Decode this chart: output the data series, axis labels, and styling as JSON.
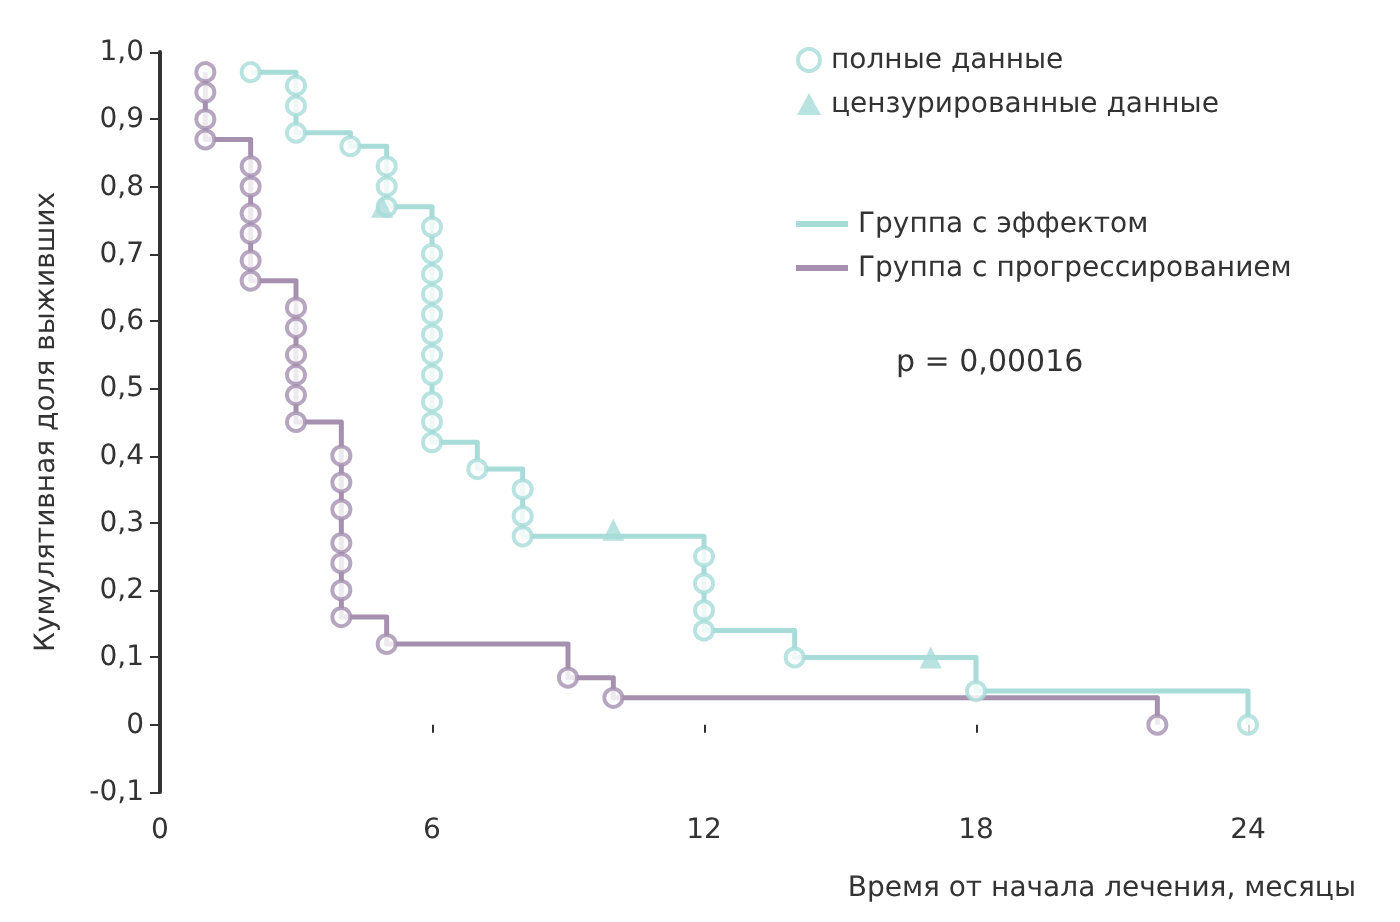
{
  "chart_data": {
    "type": "step",
    "xlabel": "Время от начала лечения, месяцы",
    "ylabel": "Кумулятивная доля выживших",
    "annotations": [
      "p = 0,00016"
    ],
    "xlim": [
      0,
      24
    ],
    "xticks": [
      0,
      6,
      12,
      18,
      24
    ],
    "ylim": [
      -0.1,
      1.0
    ],
    "yticks": [
      {
        "value": -0.1,
        "label": "-0,1"
      },
      {
        "value": 0,
        "label": "0"
      },
      {
        "value": 0.1,
        "label": "0,1"
      },
      {
        "value": 0.2,
        "label": "0,2"
      },
      {
        "value": 0.3,
        "label": "0,3"
      },
      {
        "value": 0.4,
        "label": "0,4"
      },
      {
        "value": 0.5,
        "label": "0,5"
      },
      {
        "value": 0.6,
        "label": "0,6"
      },
      {
        "value": 0.7,
        "label": "0,7"
      },
      {
        "value": 0.8,
        "label": "0,8"
      },
      {
        "value": 0.9,
        "label": "0,9"
      },
      {
        "value": 1.0,
        "label": "1,0"
      }
    ],
    "grid": false,
    "legend": "top right",
    "series": [
      {
        "name": "полные данные",
        "type": "scatter",
        "marker": "circle",
        "color": "#a8dcd9",
        "x": [
          2,
          3,
          3,
          3,
          4.2,
          5,
          5,
          5,
          6,
          6,
          6,
          6,
          6,
          6,
          6,
          6,
          6,
          6,
          6,
          7,
          8,
          8,
          8,
          12,
          12,
          12,
          12,
          14,
          18,
          24,
          1,
          1,
          1,
          1,
          2,
          2,
          2,
          2,
          2,
          2,
          3,
          3,
          3,
          3,
          3,
          3,
          4,
          4,
          4,
          4,
          4,
          4,
          4,
          5,
          9,
          10,
          22
        ],
        "values": [
          0.97,
          0.95,
          0.92,
          0.88,
          0.86,
          0.83,
          0.8,
          0.77,
          0.74,
          0.7,
          0.67,
          0.64,
          0.61,
          0.58,
          0.55,
          0.52,
          0.48,
          0.45,
          0.42,
          0.38,
          0.35,
          0.31,
          0.28,
          0.25,
          0.21,
          0.17,
          0.14,
          0.1,
          0.05,
          0,
          0.97,
          0.94,
          0.9,
          0.87,
          0.83,
          0.8,
          0.76,
          0.73,
          0.69,
          0.66,
          0.62,
          0.59,
          0.55,
          0.52,
          0.49,
          0.45,
          0.4,
          0.36,
          0.32,
          0.27,
          0.24,
          0.2,
          0.16,
          0.12,
          0.07,
          0.04,
          0
        ],
        "colors": [
          "#a8dcd9",
          "#a8dcd9",
          "#a8dcd9",
          "#a8dcd9",
          "#a8dcd9",
          "#a8dcd9",
          "#a8dcd9",
          "#a8dcd9",
          "#a8dcd9",
          "#a8dcd9",
          "#a8dcd9",
          "#a8dcd9",
          "#a8dcd9",
          "#a8dcd9",
          "#a8dcd9",
          "#a8dcd9",
          "#a8dcd9",
          "#a8dcd9",
          "#a8dcd9",
          "#a8dcd9",
          "#a8dcd9",
          "#a8dcd9",
          "#a8dcd9",
          "#a8dcd9",
          "#a8dcd9",
          "#a8dcd9",
          "#a8dcd9",
          "#a8dcd9",
          "#a8dcd9",
          "#a8dcd9",
          "#a590b0",
          "#a590b0",
          "#a590b0",
          "#a590b0",
          "#a590b0",
          "#a590b0",
          "#a590b0",
          "#a590b0",
          "#a590b0",
          "#a590b0",
          "#a590b0",
          "#a590b0",
          "#a590b0",
          "#a590b0",
          "#a590b0",
          "#a590b0",
          "#a590b0",
          "#a590b0",
          "#a590b0",
          "#a590b0",
          "#a590b0",
          "#a590b0",
          "#a590b0",
          "#a590b0",
          "#a590b0",
          "#a590b0",
          "#a590b0"
        ]
      },
      {
        "name": "цензурированные данные",
        "type": "scatter",
        "marker": "triangle",
        "color": "#a8dcd9",
        "x": [
          4.9,
          10,
          17
        ],
        "values": [
          0.77,
          0.29,
          0.1
        ],
        "colors": [
          "#a8dcd9",
          "#a8dcd9",
          "#a8dcd9"
        ]
      },
      {
        "name": "Группа с эффектом",
        "marker": "none",
        "color": "#a8dcd9",
        "x": [
          2,
          3,
          4.2,
          5,
          6,
          7,
          8,
          12,
          14,
          18,
          24
        ],
        "values": [
          0.97,
          0.88,
          0.86,
          0.77,
          0.42,
          0.38,
          0.28,
          0.14,
          0.1,
          0.05,
          0
        ]
      },
      {
        "name": "Группа с прогрессированием",
        "marker": "none",
        "color": "#a590b0",
        "x": [
          1,
          1,
          2,
          3,
          4,
          5,
          9,
          10,
          22
        ],
        "values": [
          0.97,
          0.87,
          0.66,
          0.45,
          0.16,
          0.12,
          0.07,
          0.04,
          0
        ]
      }
    ]
  }
}
